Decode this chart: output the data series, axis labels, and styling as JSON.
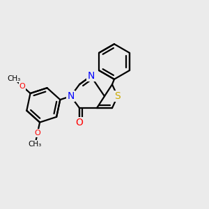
{
  "bg_color": "#ebebeb",
  "bond_color": "#000000",
  "bond_lw": 1.6,
  "figsize": [
    3.0,
    3.0
  ],
  "dpi": 100,
  "N_color": "#0000ff",
  "S_color": "#ccaa00",
  "O_color": "#ff0000",
  "methoxy_labels": [
    "OCH₃",
    "OCH₃"
  ],
  "O_label": "O",
  "N_label": "N",
  "S_label": "S"
}
